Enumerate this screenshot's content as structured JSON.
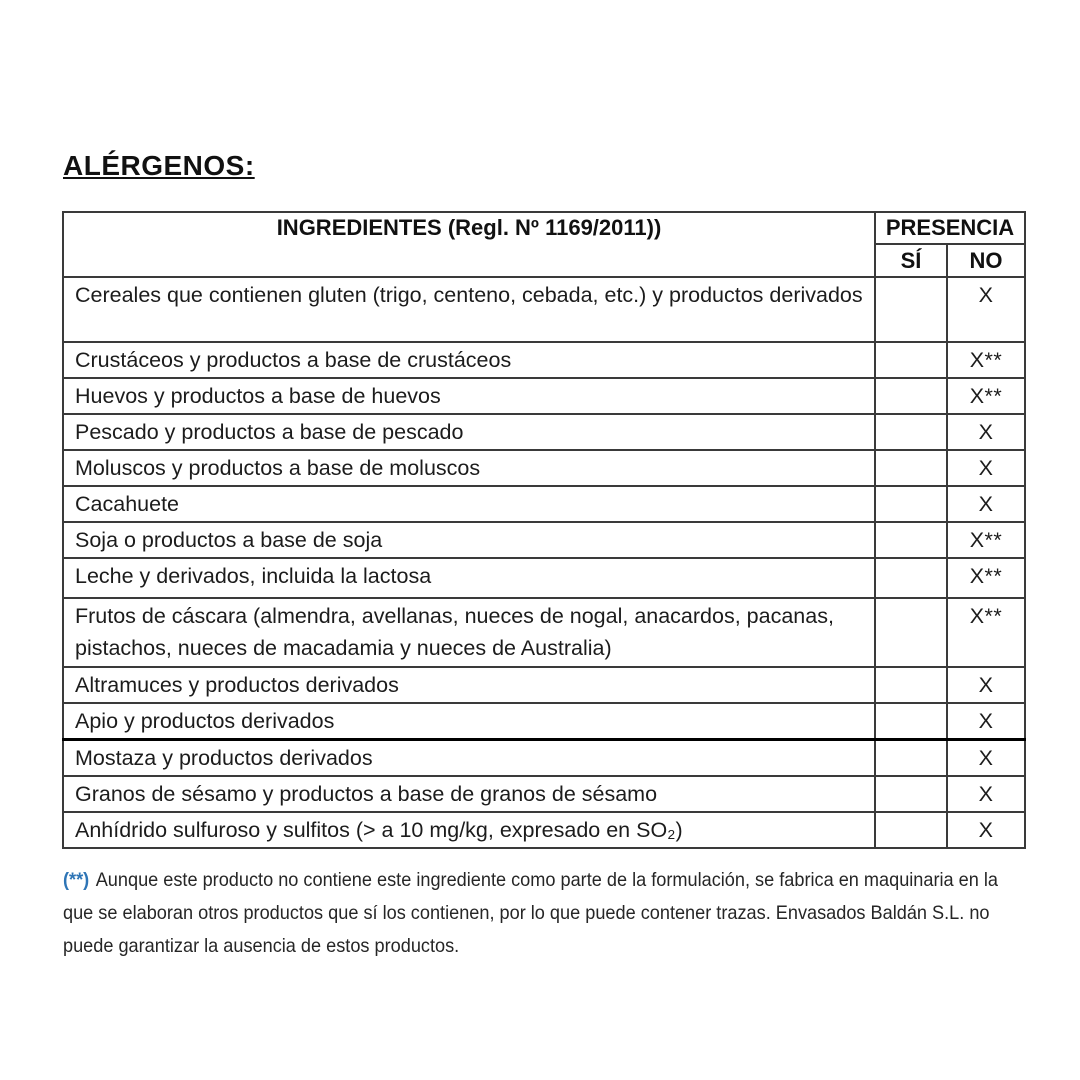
{
  "page": {
    "title": "ALÉRGENOS:"
  },
  "table": {
    "header": {
      "ingredients": "INGREDIENTES (Regl. Nº 1169/2011))",
      "presence": "PRESENCIA",
      "yes": "SÍ",
      "no": "NO"
    },
    "rows": [
      {
        "ingredient": "Cereales que contienen gluten (trigo, centeno, cebada, etc.) y productos derivados",
        "si": "",
        "no": "X"
      },
      {
        "ingredient": "Crustáceos y productos a base de crustáceos",
        "si": "",
        "no": "X**"
      },
      {
        "ingredient": "Huevos y productos a base de huevos",
        "si": "",
        "no": "X**"
      },
      {
        "ingredient": "Pescado y productos a base de pescado",
        "si": "",
        "no": "X"
      },
      {
        "ingredient": "Moluscos y productos a base de moluscos",
        "si": "",
        "no": "X"
      },
      {
        "ingredient": "Cacahuete",
        "si": "",
        "no": "X"
      },
      {
        "ingredient": "Soja o productos a base de soja",
        "si": "",
        "no": "X**"
      },
      {
        "ingredient": "Leche y derivados, incluida la lactosa",
        "si": "",
        "no": "X**"
      },
      {
        "ingredient": "Frutos de cáscara (almendra, avellanas, nueces de nogal, anacardos, pacanas, pistachos, nueces de macadamia y nueces de Australia)",
        "si": "",
        "no": "X**"
      },
      {
        "ingredient": "Altramuces y productos derivados",
        "si": "",
        "no": "X"
      },
      {
        "ingredient": "Apio y productos derivados",
        "si": "",
        "no": "X"
      },
      {
        "ingredient": "Mostaza y productos derivados",
        "si": "",
        "no": "X"
      },
      {
        "ingredient": "Granos de sésamo y productos a base de granos de sésamo",
        "si": "",
        "no": "X"
      },
      {
        "ingredient": "Anhídrido sulfuroso y sulfitos (> a 10 mg/kg, expresado en SO₂)",
        "si": "",
        "no": "X"
      }
    ]
  },
  "footnote": {
    "marker": "(**)",
    "marker_color": "#2E75B6",
    "lines": [
      "Aunque este producto no contiene este ingrediente como parte de la formulación, se fabrica en maquinaria en la",
      "que se elaboran otros productos que sí los contienen, por lo que puede contener trazas. Envasados Baldán S.L. no",
      "puede garantizar la ausencia de estos productos."
    ]
  }
}
